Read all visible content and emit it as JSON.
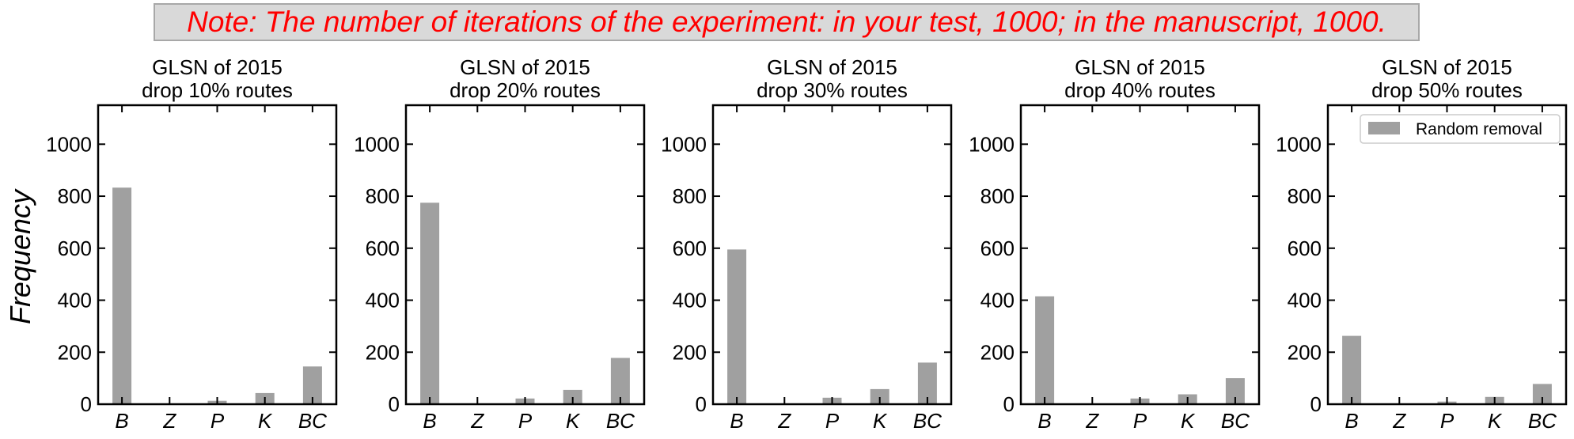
{
  "note": "Note: The number of iterations of the experiment: in your test, 1000; in the manuscript, 1000.",
  "colors": {
    "note_text": "#ff0000",
    "note_background": "#d9d9d9",
    "bar": "#a0a0a0"
  },
  "chart_data": {
    "type": "bar",
    "ylabel": "Frequency",
    "ylim": [
      0,
      1150
    ],
    "yticks": [
      0,
      200,
      400,
      600,
      800,
      1000
    ],
    "categories": [
      "B",
      "Z",
      "P",
      "K",
      "BC"
    ],
    "grid": false,
    "legend": {
      "entries": [
        "Random removal"
      ],
      "placement": "top-right",
      "panel": 5
    },
    "panels": [
      {
        "title": [
          "GLSN of 2015",
          "drop 10% routes"
        ],
        "series": [
          {
            "name": "Random removal",
            "values": [
              833,
              0,
              13,
              43,
              145
            ]
          }
        ]
      },
      {
        "title": [
          "GLSN of 2015",
          "drop 20% routes"
        ],
        "series": [
          {
            "name": "Random removal",
            "values": [
              775,
              0,
              22,
              55,
              178
            ]
          }
        ]
      },
      {
        "title": [
          "GLSN of 2015",
          "drop 30% routes"
        ],
        "series": [
          {
            "name": "Random removal",
            "values": [
              595,
              0,
              25,
              58,
              160
            ]
          }
        ]
      },
      {
        "title": [
          "GLSN of 2015",
          "drop 40% routes"
        ],
        "series": [
          {
            "name": "Random removal",
            "values": [
              415,
              0,
              22,
              38,
              100
            ]
          }
        ]
      },
      {
        "title": [
          "GLSN of 2015",
          "drop 50% routes"
        ],
        "series": [
          {
            "name": "Random removal",
            "values": [
              263,
              0,
              10,
              28,
              78
            ]
          }
        ]
      }
    ]
  }
}
